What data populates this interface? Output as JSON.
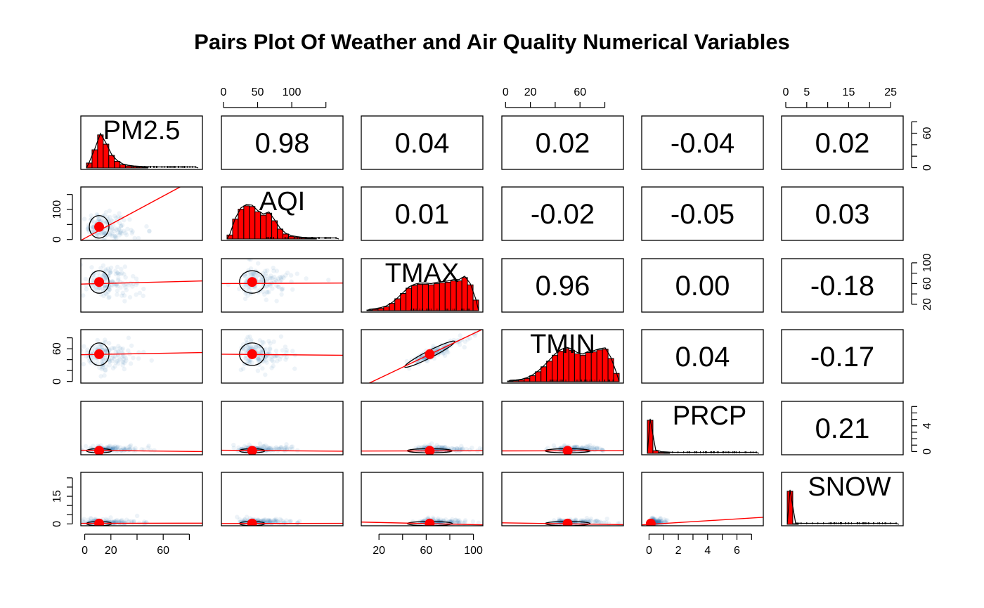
{
  "title": "Pairs Plot Of Weather and Air Quality Numerical Variables",
  "chart_data": {
    "type": "scatter",
    "title": "Pairs Plot Of Weather and Air Quality Numerical Variables",
    "variables": [
      "PM2.5",
      "AQI",
      "TMAX",
      "TMIN",
      "PRCP",
      "SNOW"
    ],
    "ranges": {
      "PM2.5": [
        -3,
        90
      ],
      "AQI": [
        -3,
        175
      ],
      "TMAX": [
        5,
        108
      ],
      "TMIN": [
        -3,
        95
      ],
      "PRCP": [
        -0.5,
        7.8
      ],
      "SNOW": [
        -1,
        28
      ]
    },
    "means": {
      "PM2.5": 11,
      "AQI": 42,
      "TMAX": 63,
      "TMIN": 50,
      "PRCP": 0.12,
      "SNOW": 0.2
    },
    "correlations": [
      {
        "row": 0,
        "col": 1,
        "value": "0.98"
      },
      {
        "row": 0,
        "col": 2,
        "value": "0.04"
      },
      {
        "row": 0,
        "col": 3,
        "value": "0.02"
      },
      {
        "row": 0,
        "col": 4,
        "value": "-0.04"
      },
      {
        "row": 0,
        "col": 5,
        "value": "0.02"
      },
      {
        "row": 1,
        "col": 2,
        "value": "0.01"
      },
      {
        "row": 1,
        "col": 3,
        "value": "-0.02"
      },
      {
        "row": 1,
        "col": 4,
        "value": "-0.05"
      },
      {
        "row": 1,
        "col": 5,
        "value": "0.03"
      },
      {
        "row": 2,
        "col": 3,
        "value": "0.96"
      },
      {
        "row": 2,
        "col": 4,
        "value": "0.00"
      },
      {
        "row": 2,
        "col": 5,
        "value": "-0.18"
      },
      {
        "row": 3,
        "col": 4,
        "value": "0.04"
      },
      {
        "row": 3,
        "col": 5,
        "value": "-0.17"
      },
      {
        "row": 4,
        "col": 5,
        "value": "0.21"
      }
    ],
    "histograms": {
      "PM2.5": [
        0.15,
        0.55,
        1.0,
        0.72,
        0.38,
        0.2,
        0.1,
        0.06,
        0.04,
        0.03,
        0.02,
        0.015,
        0.01,
        0.01,
        0.01,
        0.01,
        0.01,
        0.01,
        0.01,
        0.01
      ],
      "AQI": [
        0.12,
        0.6,
        0.9,
        1.0,
        0.98,
        0.82,
        0.72,
        0.78,
        0.55,
        0.3,
        0.15,
        0.08,
        0.05,
        0.03,
        0.02,
        0.02,
        0.01,
        0.01,
        0.01,
        0.01
      ],
      "TMAX": [
        0.02,
        0.04,
        0.07,
        0.12,
        0.22,
        0.36,
        0.52,
        0.68,
        0.76,
        0.8,
        0.8,
        0.78,
        0.82,
        0.84,
        0.86,
        0.9,
        0.9,
        1.0,
        0.78,
        0.32
      ],
      "TMIN": [
        0.02,
        0.03,
        0.05,
        0.1,
        0.18,
        0.3,
        0.45,
        0.62,
        0.8,
        0.92,
        1.0,
        0.95,
        0.84,
        0.8,
        0.88,
        0.9,
        0.96,
        0.98,
        0.7,
        0.25
      ],
      "PRCP": [
        1.0,
        0.08,
        0.03,
        0.02,
        0.01,
        0.01,
        0.01,
        0.01,
        0.01,
        0.01,
        0.01,
        0.01,
        0.01,
        0.01,
        0.01,
        0.01,
        0.01,
        0.01,
        0.01,
        0.01
      ],
      "SNOW": [
        1.0,
        0.02,
        0.01,
        0.01,
        0.01,
        0.01,
        0.01,
        0.01,
        0.01,
        0.01,
        0.01,
        0.01,
        0.01,
        0.01,
        0.01,
        0.01,
        0.01,
        0.01,
        0.01,
        0.01
      ]
    },
    "regression_lines": [
      {
        "row": 1,
        "col": 0,
        "x": [
          -3,
          90
        ],
        "y": [
          -3,
          215
        ]
      },
      {
        "row": 2,
        "col": 0,
        "x": [
          -3,
          90
        ],
        "y": [
          59,
          65
        ]
      },
      {
        "row": 2,
        "col": 1,
        "x": [
          -3,
          175
        ],
        "y": [
          60,
          61
        ]
      },
      {
        "row": 3,
        "col": 0,
        "x": [
          -3,
          90
        ],
        "y": [
          49,
          53
        ]
      },
      {
        "row": 3,
        "col": 1,
        "x": [
          -3,
          175
        ],
        "y": [
          50,
          48
        ]
      },
      {
        "row": 3,
        "col": 2,
        "x": [
          5,
          108
        ],
        "y": [
          -10,
          96
        ]
      },
      {
        "row": 4,
        "col": 0,
        "x": [
          -3,
          90
        ],
        "y": [
          0.2,
          0.0
        ]
      },
      {
        "row": 4,
        "col": 1,
        "x": [
          -3,
          175
        ],
        "y": [
          0.2,
          0.05
        ]
      },
      {
        "row": 4,
        "col": 2,
        "x": [
          5,
          108
        ],
        "y": [
          0.08,
          0.12
        ]
      },
      {
        "row": 4,
        "col": 3,
        "x": [
          -3,
          95
        ],
        "y": [
          0.1,
          0.14
        ]
      },
      {
        "row": 5,
        "col": 0,
        "x": [
          -3,
          90
        ],
        "y": [
          0.3,
          0.4
        ]
      },
      {
        "row": 5,
        "col": 1,
        "x": [
          -3,
          175
        ],
        "y": [
          0.2,
          0.3
        ]
      },
      {
        "row": 5,
        "col": 2,
        "x": [
          5,
          108
        ],
        "y": [
          1.0,
          -0.5
        ]
      },
      {
        "row": 5,
        "col": 3,
        "x": [
          -3,
          95
        ],
        "y": [
          0.6,
          -0.4
        ]
      },
      {
        "row": 5,
        "col": 4,
        "x": [
          -0.5,
          7.8
        ],
        "y": [
          -0.5,
          3.6
        ]
      }
    ],
    "axis_ticks": {
      "top": [
        {
          "col": 1,
          "ticks": [
            0,
            50,
            100,
            150
          ],
          "labels": [
            "0",
            "50",
            "100"
          ]
        },
        {
          "col": 3,
          "ticks": [
            0,
            20,
            40,
            60,
            80
          ],
          "labels": [
            "0",
            "20",
            "60"
          ]
        },
        {
          "col": 5,
          "ticks": [
            0,
            5,
            10,
            15,
            20,
            25
          ],
          "labels": [
            "0",
            "5",
            "15",
            "25"
          ]
        }
      ],
      "bottom": [
        {
          "col": 0,
          "ticks": [
            0,
            20,
            40,
            60,
            80
          ],
          "labels": [
            "0",
            "20",
            "60"
          ]
        },
        {
          "col": 2,
          "ticks": [
            20,
            40,
            60,
            80,
            100
          ],
          "labels": [
            "20",
            "60",
            "100"
          ]
        },
        {
          "col": 4,
          "ticks": [
            0,
            1,
            2,
            3,
            4,
            5,
            6,
            7
          ],
          "labels": [
            "0",
            "2",
            "4",
            "6"
          ]
        }
      ],
      "left": [
        {
          "row": 1,
          "ticks": [
            0,
            50,
            100,
            150
          ],
          "labels": [
            "0",
            "100"
          ]
        },
        {
          "row": 3,
          "ticks": [
            0,
            20,
            40,
            60,
            80
          ],
          "labels": [
            "0",
            "60"
          ]
        },
        {
          "row": 5,
          "ticks": [
            0,
            5,
            10,
            15,
            20,
            25
          ],
          "labels": [
            "0",
            "15"
          ]
        }
      ],
      "right": [
        {
          "row": 0,
          "ticks": [
            0,
            20,
            40,
            60,
            80
          ],
          "labels": [
            "0",
            "60"
          ]
        },
        {
          "row": 2,
          "ticks": [
            20,
            40,
            60,
            80,
            100
          ],
          "labels": [
            "20",
            "60",
            "100"
          ]
        },
        {
          "row": 4,
          "ticks": [
            0,
            1,
            2,
            3,
            4,
            5,
            6,
            7
          ],
          "labels": [
            "0",
            "4"
          ]
        }
      ]
    },
    "colors": {
      "histogram_fill": "#ff0000",
      "regression_line": "#ff0000",
      "mean_point": "#ff0000",
      "density_point": "#3a78b5",
      "frame": "#000000"
    },
    "grid": false
  }
}
